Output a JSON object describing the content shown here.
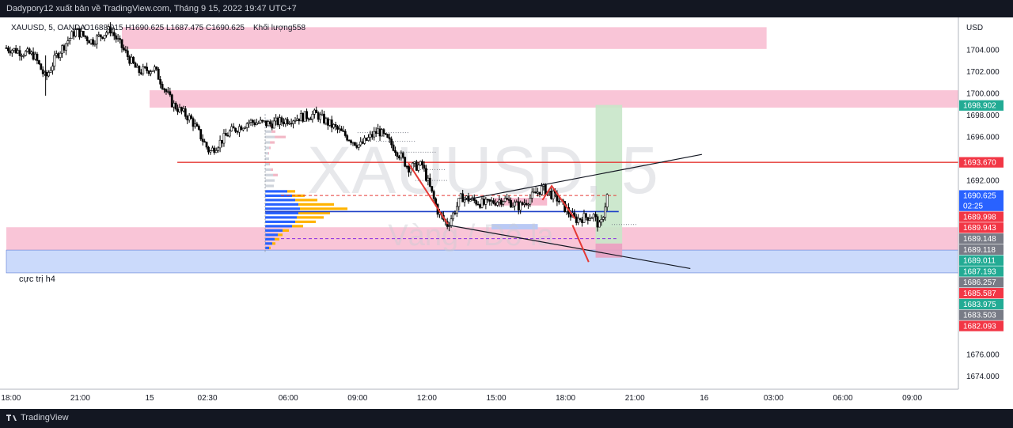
{
  "header": {
    "publish_text": "Dadypory12 xuất bản về TradingView.com, Tháng 9 15, 2022 19:47 UTC+7"
  },
  "legend": {
    "symbol": "XAUUSD, 5, OANDA",
    "ohlc_text": "O1688.915  H1690.625  L1687.475  C1690.625",
    "volume_text": "Khối lượng558"
  },
  "watermark": {
    "symbol": "XAUUSD, 5",
    "name": "Vàng / Đô la"
  },
  "footer": {
    "brand": "TradingView"
  },
  "annotations": {
    "zone_label": "cực trị h4"
  },
  "colors": {
    "up": "#26a69a",
    "down": "#ef5350",
    "candle": "#000000",
    "supply_zone": "#f8bbd0",
    "demand_zone": "#c5d6fb",
    "resistance_line": "#e53935",
    "poc_line": "#1e40c8",
    "profile_blue": "#2962ff",
    "profile_orange": "#ffb300",
    "target_green": "#c8e6c9",
    "label_red": "#f23645",
    "label_green": "#22ab94",
    "label_gray": "#787b86",
    "label_blue": "#2962ff"
  },
  "chart_data": {
    "type": "candlestick",
    "title": "XAUUSD, 5, OANDA",
    "currency": "USD",
    "ylim": [
      1672.8,
      1707.0
    ],
    "y_ticks": [
      1674.0,
      1676.0,
      1692.0,
      1696.0,
      1698.0,
      1700.0,
      1702.0,
      1704.0
    ],
    "x_ticks": [
      "18:00",
      "21:00",
      "15",
      "02:30",
      "06:00",
      "09:00",
      "12:00",
      "15:00",
      "18:00",
      "21:00",
      "16",
      "03:00",
      "06:00",
      "09:00"
    ],
    "x_tick_hours": [
      18,
      21,
      24,
      26.5,
      30,
      33,
      36,
      39,
      42,
      45,
      48,
      51,
      54,
      57
    ],
    "xlim_hours": [
      17.8,
      59.0
    ],
    "price_path": [
      [
        17.8,
        1704.2
      ],
      [
        18.5,
        1703.8
      ],
      [
        19.0,
        1703.5
      ],
      [
        19.5,
        1701.4
      ],
      [
        20.0,
        1703.6
      ],
      [
        20.8,
        1705.8
      ],
      [
        21.5,
        1704.8
      ],
      [
        22.3,
        1705.9
      ],
      [
        23.0,
        1703.6
      ],
      [
        23.5,
        1702.0
      ],
      [
        24.2,
        1702.3
      ],
      [
        25.0,
        1699.0
      ],
      [
        25.8,
        1697.6
      ],
      [
        26.6,
        1694.6
      ],
      [
        27.5,
        1696.5
      ],
      [
        28.3,
        1697.4
      ],
      [
        29.2,
        1697.2
      ],
      [
        30.2,
        1697.7
      ],
      [
        31.2,
        1698.1
      ],
      [
        32.3,
        1696.4
      ],
      [
        33.1,
        1695.2
      ],
      [
        33.9,
        1696.6
      ],
      [
        34.6,
        1695.0
      ],
      [
        35.2,
        1693.2
      ],
      [
        35.8,
        1693.4
      ],
      [
        36.5,
        1689.0
      ],
      [
        36.9,
        1687.9
      ],
      [
        37.5,
        1690.5
      ],
      [
        38.5,
        1689.8
      ],
      [
        39.3,
        1690.3
      ],
      [
        40.0,
        1689.6
      ],
      [
        41.0,
        1691.3
      ],
      [
        41.6,
        1690.4
      ],
      [
        42.4,
        1688.4
      ],
      [
        43.2,
        1688.8
      ],
      [
        43.5,
        1687.6
      ],
      [
        43.8,
        1690.6
      ]
    ],
    "levels": {
      "resistance_line": 1693.67,
      "poc_line": 1689.14
    },
    "zones": [
      {
        "kind": "supply",
        "from": 1704.1,
        "to": 1706.1,
        "start": 22.8,
        "end": 50.7
      },
      {
        "kind": "supply",
        "from": 1698.7,
        "to": 1700.3,
        "start": 24.0,
        "end": 59.0
      },
      {
        "kind": "supply",
        "from": 1685.6,
        "to": 1687.7,
        "start": 17.8,
        "end": 59.0
      },
      {
        "kind": "demand",
        "from": 1683.5,
        "to": 1685.6,
        "start": 17.8,
        "end": 59.0
      }
    ],
    "price_labels": [
      {
        "text": "1698.902",
        "color": "label_green"
      },
      {
        "text": "1693.670",
        "color": "label_red"
      },
      {
        "text": "1690.625",
        "sub": "02:25",
        "color": "label_blue"
      },
      {
        "text": "1689.998",
        "color": "label_red"
      },
      {
        "text": "1689.943",
        "color": "label_red"
      },
      {
        "text": "1689.148",
        "color": "label_gray"
      },
      {
        "text": "1689.118",
        "color": "label_gray"
      },
      {
        "text": "1689.011",
        "color": "label_green"
      },
      {
        "text": "1687.193",
        "color": "label_green"
      },
      {
        "text": "1686.257",
        "color": "label_gray"
      },
      {
        "text": "1685.587",
        "color": "label_red"
      },
      {
        "text": "1683.975",
        "color": "label_green"
      },
      {
        "text": "1683.503",
        "color": "label_gray"
      },
      {
        "text": "1682.093",
        "color": "label_red"
      }
    ],
    "label_prices": [
      1698.902,
      1693.67,
      1690.625,
      1689.998,
      1689.943,
      1689.148,
      1689.118,
      1689.011,
      1687.193,
      1686.257,
      1685.587,
      1683.975,
      1683.503,
      1682.093
    ]
  }
}
